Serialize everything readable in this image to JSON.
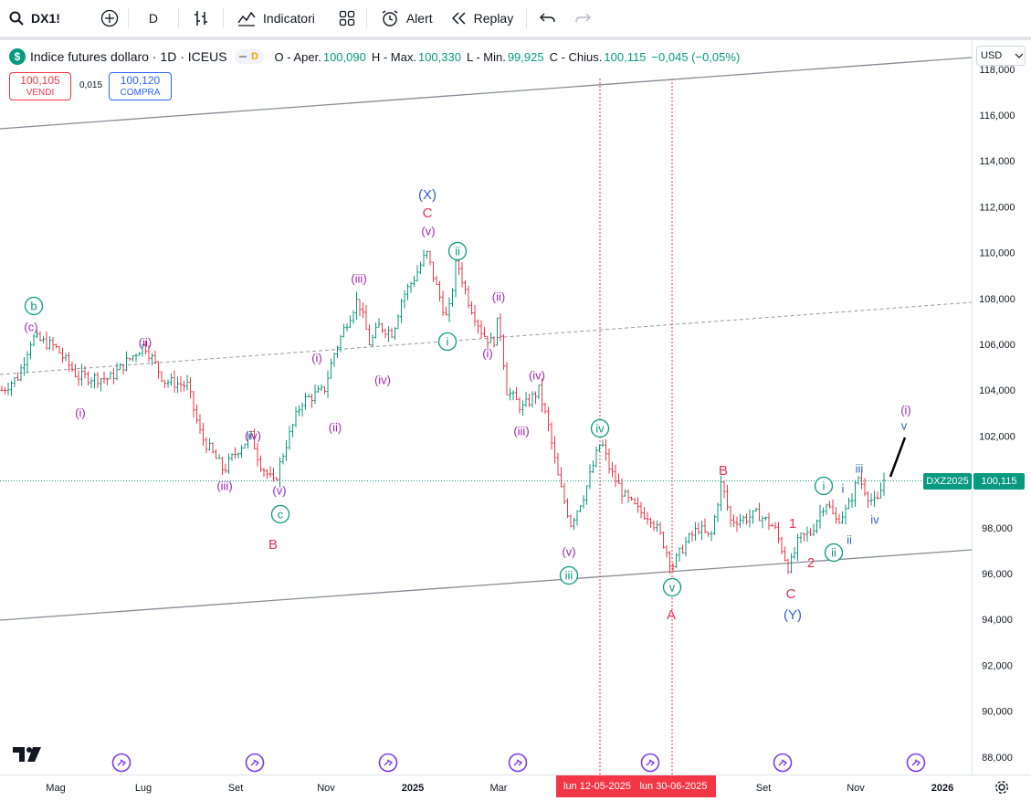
{
  "toolbar": {
    "symbol": "DX1!",
    "interval": "D",
    "indicators_label": "Indicatori",
    "alert_label": "Alert",
    "replay_label": "Replay"
  },
  "legend": {
    "title": "Indice futures dollaro · 1D · ICEUS",
    "logo_letter": "$",
    "pill_letter": "D",
    "open_label": "O - Aper.",
    "open": "100,090",
    "high_label": "H - Max.",
    "high": "100,330",
    "low_label": "L - Min.",
    "low": "99,925",
    "close_label": "C - Chius.",
    "close": "100,115",
    "change": "−0,045 (−0,05%)"
  },
  "trade": {
    "sell_price": "100,105",
    "sell_label": "VENDI",
    "spread": "0,015",
    "buy_price": "100,120",
    "buy_label": "COMPRA"
  },
  "currency": "USD",
  "price_axis": {
    "ticks": [
      "118,000",
      "116,000",
      "114,000",
      "112,000",
      "110,000",
      "108,000",
      "106,000",
      "104,000",
      "102,000",
      "100,000",
      "98,000",
      "96,000",
      "94,000",
      "92,000",
      "90,000",
      "88,000"
    ],
    "symbol_tag": "DXZ2025",
    "last_price": "100,115"
  },
  "time_axis": {
    "labels": [
      "Mag",
      "Lug",
      "Set",
      "Nov",
      "2025",
      "Mar",
      "Set",
      "Nov",
      "2026"
    ],
    "highlight_1": "lun 12-05-2025",
    "highlight_2": "lun 30-06-2025"
  },
  "wave_labels": {
    "b_circle": "b",
    "c_paren_1": "(c)",
    "i_paren_1": "(i)",
    "ii_paren_1": "(ii)",
    "iii_paren_1": "(iii)",
    "iv_paren_1": "(iv)",
    "v_paren_1": "(v)",
    "c_circle": "c",
    "B_1": "B",
    "i_paren_2": "(i)",
    "ii_paren_2": "(ii)",
    "iii_paren_2": "(iii)",
    "iv_paren_2": "(iv)",
    "v_paren_2": "(v)",
    "X": "(X)",
    "C_1": "C",
    "i_circle_1": "i",
    "ii_circle_1": "ii",
    "ii_paren_3": "(ii)",
    "i_paren_3": "(i)",
    "iv_paren_3": "(iv)",
    "iii_paren_3": "(iii)",
    "v_paren_3": "(v)",
    "iii_circle": "iii",
    "iv_circle": "iv",
    "v_circle": "v",
    "A": "A",
    "B_2": "B",
    "one": "1",
    "two": "2",
    "C_2": "C",
    "Y": "(Y)",
    "i_circle_2": "i",
    "ii_circle_2": "ii",
    "i_small": "i",
    "ii_small": "ii",
    "iii_small": "iii",
    "iv_small": "iv",
    "v_small": "v",
    "i_paren_4": "(i)"
  },
  "colors": {
    "up": "#089981",
    "down": "#f23645",
    "purple": "#9c27b0",
    "teal": "#089981",
    "red": "#e53150",
    "blue": "#2f5fd0"
  },
  "chart_data": {
    "type": "candlestick",
    "trend_lines": "upper and lower channel lines plus dashed mid-line",
    "y_range": [
      88,
      118
    ]
  }
}
